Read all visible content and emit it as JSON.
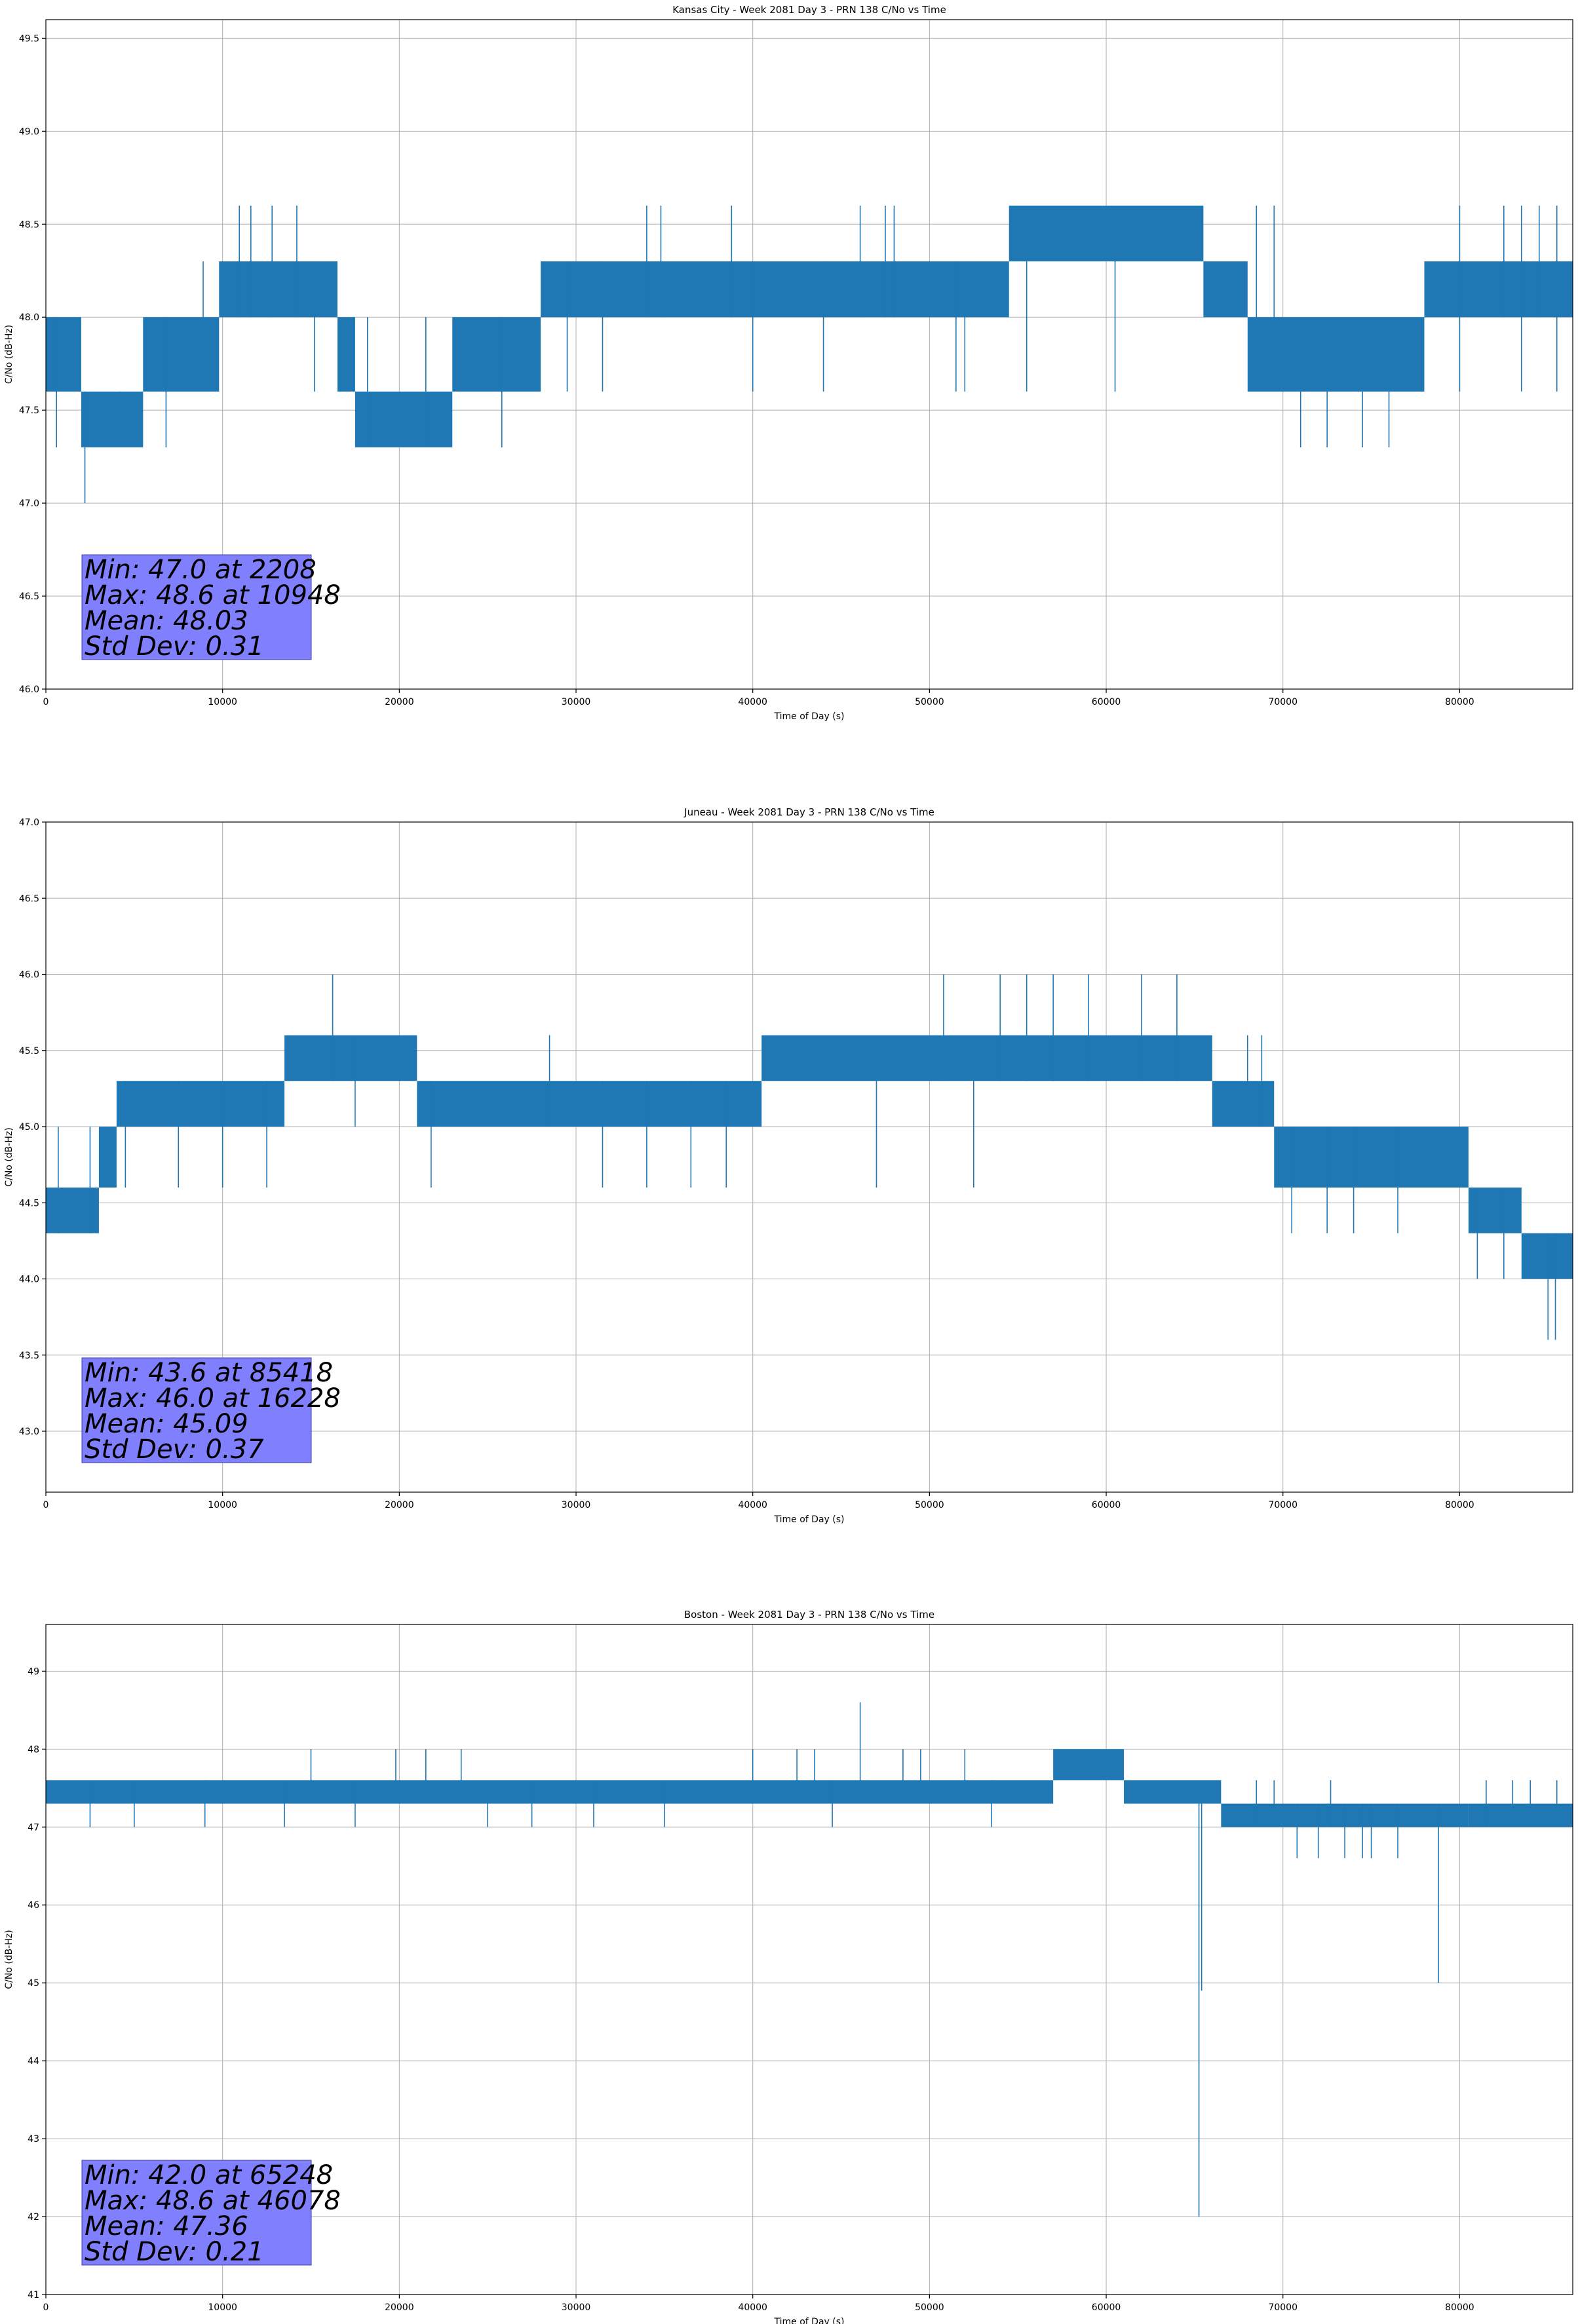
{
  "colors": {
    "series": "#1f77b4",
    "stats_box": "#8080ff",
    "grid": "#b0b0b0"
  },
  "chart_data": [
    {
      "type": "line",
      "title": "Kansas City - Week 2081 Day 3 - PRN 138 C/No vs Time",
      "xlabel": "Time of Day (s)",
      "ylabel": "C/No (dB-Hz)",
      "xlim": [
        0,
        86400
      ],
      "ylim": [
        46.0,
        49.6
      ],
      "xticks": [
        0,
        10000,
        20000,
        30000,
        40000,
        50000,
        60000,
        70000,
        80000
      ],
      "xtick_labels": [
        "0",
        "10000",
        "20000",
        "30000",
        "40000",
        "50000",
        "60000",
        "70000",
        "80000"
      ],
      "yticks": [
        46.0,
        46.5,
        47.0,
        47.5,
        48.0,
        48.5,
        49.0,
        49.5
      ],
      "ytick_labels": [
        "46.0",
        "46.5",
        "47.0",
        "47.5",
        "48.0",
        "48.5",
        "49.0",
        "49.5"
      ],
      "grid": true,
      "series": [
        {
          "envelope": [
            {
              "x0": 0,
              "x1": 2000,
              "lo": 47.6,
              "hi": 48.0
            },
            {
              "x0": 2000,
              "x1": 5500,
              "lo": 47.3,
              "hi": 47.6
            },
            {
              "x0": 5500,
              "x1": 9800,
              "lo": 47.6,
              "hi": 48.0
            },
            {
              "x0": 9800,
              "x1": 16500,
              "lo": 48.0,
              "hi": 48.3
            },
            {
              "x0": 16500,
              "x1": 17500,
              "lo": 47.6,
              "hi": 48.0
            },
            {
              "x0": 17500,
              "x1": 23000,
              "lo": 47.3,
              "hi": 47.6
            },
            {
              "x0": 23000,
              "x1": 28000,
              "lo": 47.6,
              "hi": 48.0
            },
            {
              "x0": 28000,
              "x1": 54500,
              "lo": 48.0,
              "hi": 48.3
            },
            {
              "x0": 54500,
              "x1": 65500,
              "lo": 48.3,
              "hi": 48.6
            },
            {
              "x0": 65500,
              "x1": 68000,
              "lo": 48.0,
              "hi": 48.3
            },
            {
              "x0": 68000,
              "x1": 78000,
              "lo": 47.6,
              "hi": 48.0
            },
            {
              "x0": 78000,
              "x1": 86400,
              "lo": 48.0,
              "hi": 48.3
            }
          ],
          "spikes": [
            {
              "x": 2208,
              "lo": 47.0,
              "hi": 47.6
            },
            {
              "x": 600,
              "lo": 47.3,
              "hi": 48.0
            },
            {
              "x": 4200,
              "lo": 47.3,
              "hi": 47.6
            },
            {
              "x": 6800,
              "lo": 47.3,
              "hi": 48.0
            },
            {
              "x": 8900,
              "lo": 48.0,
              "hi": 48.3
            },
            {
              "x": 10948,
              "lo": 48.0,
              "hi": 48.6
            },
            {
              "x": 11600,
              "lo": 48.0,
              "hi": 48.6
            },
            {
              "x": 12800,
              "lo": 48.0,
              "hi": 48.6
            },
            {
              "x": 14200,
              "lo": 48.0,
              "hi": 48.6
            },
            {
              "x": 15200,
              "lo": 47.6,
              "hi": 48.3
            },
            {
              "x": 18200,
              "lo": 47.3,
              "hi": 48.0
            },
            {
              "x": 21500,
              "lo": 47.3,
              "hi": 48.0
            },
            {
              "x": 25800,
              "lo": 47.3,
              "hi": 48.0
            },
            {
              "x": 29500,
              "lo": 47.6,
              "hi": 48.3
            },
            {
              "x": 31500,
              "lo": 47.6,
              "hi": 48.3
            },
            {
              "x": 34000,
              "lo": 48.0,
              "hi": 48.6
            },
            {
              "x": 34800,
              "lo": 48.0,
              "hi": 48.6
            },
            {
              "x": 38800,
              "lo": 48.0,
              "hi": 48.6
            },
            {
              "x": 46078,
              "lo": 48.0,
              "hi": 48.6
            },
            {
              "x": 40000,
              "lo": 47.6,
              "hi": 48.3
            },
            {
              "x": 44000,
              "lo": 47.6,
              "hi": 48.3
            },
            {
              "x": 47500,
              "lo": 48.0,
              "hi": 48.6
            },
            {
              "x": 48000,
              "lo": 48.0,
              "hi": 48.6
            },
            {
              "x": 51500,
              "lo": 47.6,
              "hi": 48.3
            },
            {
              "x": 52000,
              "lo": 47.6,
              "hi": 48.3
            },
            {
              "x": 55500,
              "lo": 47.6,
              "hi": 48.3
            },
            {
              "x": 60500,
              "lo": 47.6,
              "hi": 48.3
            },
            {
              "x": 68500,
              "lo": 48.0,
              "hi": 48.6
            },
            {
              "x": 69500,
              "lo": 48.0,
              "hi": 48.6
            },
            {
              "x": 71000,
              "lo": 47.3,
              "hi": 47.6
            },
            {
              "x": 72500,
              "lo": 47.3,
              "hi": 47.6
            },
            {
              "x": 74500,
              "lo": 47.3,
              "hi": 47.6
            },
            {
              "x": 76000,
              "lo": 47.3,
              "hi": 47.6
            },
            {
              "x": 80000,
              "lo": 47.6,
              "hi": 48.6
            },
            {
              "x": 82500,
              "lo": 48.0,
              "hi": 48.6
            },
            {
              "x": 83500,
              "lo": 47.6,
              "hi": 48.6
            },
            {
              "x": 84500,
              "lo": 48.0,
              "hi": 48.6
            },
            {
              "x": 85500,
              "lo": 47.6,
              "hi": 48.6
            }
          ]
        }
      ],
      "stats": [
        "Min: 47.0 at 2208",
        "Max: 48.6 at 10948",
        "Mean: 48.03",
        "Std Dev: 0.31"
      ]
    },
    {
      "type": "line",
      "title": "Juneau - Week 2081 Day 3 - PRN 138 C/No vs Time",
      "xlabel": "Time of Day (s)",
      "ylabel": "C/No (dB-Hz)",
      "xlim": [
        0,
        86400
      ],
      "ylim": [
        42.6,
        47.0
      ],
      "xticks": [
        0,
        10000,
        20000,
        30000,
        40000,
        50000,
        60000,
        70000,
        80000
      ],
      "xtick_labels": [
        "0",
        "10000",
        "20000",
        "30000",
        "40000",
        "50000",
        "60000",
        "70000",
        "80000"
      ],
      "yticks": [
        43.0,
        43.5,
        44.0,
        44.5,
        45.0,
        45.5,
        46.0,
        46.5,
        47.0
      ],
      "ytick_labels": [
        "43.0",
        "43.5",
        "44.0",
        "44.5",
        "45.0",
        "45.5",
        "46.0",
        "46.5",
        "47.0"
      ],
      "grid": true,
      "series": [
        {
          "envelope": [
            {
              "x0": 0,
              "x1": 3000,
              "lo": 44.3,
              "hi": 44.6
            },
            {
              "x0": 3000,
              "x1": 4000,
              "lo": 44.6,
              "hi": 45.0
            },
            {
              "x0": 4000,
              "x1": 13500,
              "lo": 45.0,
              "hi": 45.3
            },
            {
              "x0": 13500,
              "x1": 21000,
              "lo": 45.3,
              "hi": 45.6
            },
            {
              "x0": 21000,
              "x1": 40500,
              "lo": 45.0,
              "hi": 45.3
            },
            {
              "x0": 40500,
              "x1": 66000,
              "lo": 45.3,
              "hi": 45.6
            },
            {
              "x0": 66000,
              "x1": 69500,
              "lo": 45.0,
              "hi": 45.3
            },
            {
              "x0": 69500,
              "x1": 80500,
              "lo": 44.6,
              "hi": 45.0
            },
            {
              "x0": 80500,
              "x1": 83500,
              "lo": 44.3,
              "hi": 44.6
            },
            {
              "x0": 83500,
              "x1": 86400,
              "lo": 44.0,
              "hi": 44.3
            }
          ],
          "spikes": [
            {
              "x": 700,
              "lo": 44.3,
              "hi": 45.0
            },
            {
              "x": 2500,
              "lo": 44.3,
              "hi": 45.0
            },
            {
              "x": 4500,
              "lo": 44.6,
              "hi": 45.3
            },
            {
              "x": 7500,
              "lo": 44.6,
              "hi": 45.3
            },
            {
              "x": 10000,
              "lo": 44.6,
              "hi": 45.3
            },
            {
              "x": 12500,
              "lo": 44.6,
              "hi": 45.3
            },
            {
              "x": 16228,
              "lo": 45.3,
              "hi": 46.0
            },
            {
              "x": 17500,
              "lo": 45.0,
              "hi": 45.6
            },
            {
              "x": 21800,
              "lo": 44.6,
              "hi": 45.3
            },
            {
              "x": 28500,
              "lo": 45.0,
              "hi": 45.6
            },
            {
              "x": 31500,
              "lo": 44.6,
              "hi": 45.3
            },
            {
              "x": 34000,
              "lo": 44.6,
              "hi": 45.3
            },
            {
              "x": 36500,
              "lo": 44.6,
              "hi": 45.3
            },
            {
              "x": 38500,
              "lo": 44.6,
              "hi": 45.3
            },
            {
              "x": 50800,
              "lo": 45.3,
              "hi": 46.0
            },
            {
              "x": 54000,
              "lo": 45.3,
              "hi": 46.0
            },
            {
              "x": 55500,
              "lo": 45.3,
              "hi": 46.0
            },
            {
              "x": 57000,
              "lo": 45.3,
              "hi": 46.0
            },
            {
              "x": 59000,
              "lo": 45.3,
              "hi": 46.0
            },
            {
              "x": 62000,
              "lo": 45.3,
              "hi": 46.0
            },
            {
              "x": 64000,
              "lo": 45.3,
              "hi": 46.0
            },
            {
              "x": 47000,
              "lo": 44.6,
              "hi": 45.3
            },
            {
              "x": 52500,
              "lo": 44.6,
              "hi": 45.3
            },
            {
              "x": 68000,
              "lo": 45.0,
              "hi": 45.6
            },
            {
              "x": 68800,
              "lo": 45.0,
              "hi": 45.6
            },
            {
              "x": 70500,
              "lo": 44.3,
              "hi": 45.0
            },
            {
              "x": 72500,
              "lo": 44.3,
              "hi": 45.0
            },
            {
              "x": 74000,
              "lo": 44.3,
              "hi": 45.0
            },
            {
              "x": 76500,
              "lo": 44.3,
              "hi": 45.0
            },
            {
              "x": 81000,
              "lo": 44.0,
              "hi": 44.6
            },
            {
              "x": 82500,
              "lo": 44.0,
              "hi": 44.6
            },
            {
              "x": 85418,
              "lo": 43.6,
              "hi": 44.3
            },
            {
              "x": 85000,
              "lo": 43.6,
              "hi": 44.3
            }
          ]
        }
      ],
      "stats": [
        "Min: 43.6 at 85418",
        "Max: 46.0 at 16228",
        "Mean: 45.09",
        "Std Dev: 0.37"
      ]
    },
    {
      "type": "line",
      "title": "Boston - Week 2081 Day 3 - PRN 138 C/No vs Time",
      "xlabel": "Time of Day (s)",
      "ylabel": "C/No (dB-Hz)",
      "xlim": [
        0,
        86400
      ],
      "ylim": [
        41.0,
        49.6
      ],
      "xticks": [
        0,
        10000,
        20000,
        30000,
        40000,
        50000,
        60000,
        70000,
        80000
      ],
      "xtick_labels": [
        "0",
        "10000",
        "20000",
        "30000",
        "40000",
        "50000",
        "60000",
        "70000",
        "80000"
      ],
      "yticks": [
        41,
        42,
        43,
        44,
        45,
        46,
        47,
        48,
        49
      ],
      "ytick_labels": [
        "41",
        "42",
        "43",
        "44",
        "45",
        "46",
        "47",
        "48",
        "49"
      ],
      "grid": true,
      "series": [
        {
          "envelope": [
            {
              "x0": 0,
              "x1": 57000,
              "lo": 47.3,
              "hi": 47.6
            },
            {
              "x0": 57000,
              "x1": 61000,
              "lo": 47.6,
              "hi": 48.0
            },
            {
              "x0": 61000,
              "x1": 66500,
              "lo": 47.3,
              "hi": 47.6
            },
            {
              "x0": 66500,
              "x1": 80500,
              "lo": 47.0,
              "hi": 47.3
            },
            {
              "x0": 80500,
              "x1": 86400,
              "lo": 47.0,
              "hi": 47.3
            }
          ],
          "spikes": [
            {
              "x": 65248,
              "lo": 42.0,
              "hi": 47.3
            },
            {
              "x": 65400,
              "lo": 44.9,
              "hi": 47.3
            },
            {
              "x": 78800,
              "lo": 45.0,
              "hi": 47.3
            },
            {
              "x": 46078,
              "lo": 47.6,
              "hi": 48.6
            },
            {
              "x": 15000,
              "lo": 47.6,
              "hi": 48.0
            },
            {
              "x": 19800,
              "lo": 47.6,
              "hi": 48.0
            },
            {
              "x": 21500,
              "lo": 47.6,
              "hi": 48.0
            },
            {
              "x": 23500,
              "lo": 47.6,
              "hi": 48.0
            },
            {
              "x": 40000,
              "lo": 47.6,
              "hi": 48.0
            },
            {
              "x": 42500,
              "lo": 47.6,
              "hi": 48.0
            },
            {
              "x": 43500,
              "lo": 47.6,
              "hi": 48.0
            },
            {
              "x": 48500,
              "lo": 47.6,
              "hi": 48.0
            },
            {
              "x": 49500,
              "lo": 47.6,
              "hi": 48.0
            },
            {
              "x": 52000,
              "lo": 47.6,
              "hi": 48.0
            },
            {
              "x": 70800,
              "lo": 46.6,
              "hi": 47.3
            },
            {
              "x": 72000,
              "lo": 46.6,
              "hi": 47.3
            },
            {
              "x": 73500,
              "lo": 46.6,
              "hi": 47.3
            },
            {
              "x": 74500,
              "lo": 46.6,
              "hi": 47.3
            },
            {
              "x": 75000,
              "lo": 46.6,
              "hi": 47.3
            },
            {
              "x": 76500,
              "lo": 46.6,
              "hi": 47.3
            },
            {
              "x": 2500,
              "lo": 47.0,
              "hi": 47.6
            },
            {
              "x": 5000,
              "lo": 47.0,
              "hi": 47.6
            },
            {
              "x": 9000,
              "lo": 47.0,
              "hi": 47.6
            },
            {
              "x": 13500,
              "lo": 47.0,
              "hi": 47.6
            },
            {
              "x": 17500,
              "lo": 47.0,
              "hi": 47.6
            },
            {
              "x": 25000,
              "lo": 47.0,
              "hi": 47.6
            },
            {
              "x": 27500,
              "lo": 47.0,
              "hi": 47.6
            },
            {
              "x": 31000,
              "lo": 47.0,
              "hi": 47.6
            },
            {
              "x": 35000,
              "lo": 47.0,
              "hi": 47.6
            },
            {
              "x": 44500,
              "lo": 47.0,
              "hi": 47.6
            },
            {
              "x": 53500,
              "lo": 47.0,
              "hi": 47.6
            },
            {
              "x": 68500,
              "lo": 47.0,
              "hi": 47.6
            },
            {
              "x": 69500,
              "lo": 47.0,
              "hi": 47.6
            },
            {
              "x": 72700,
              "lo": 47.0,
              "hi": 47.6
            },
            {
              "x": 81500,
              "lo": 47.0,
              "hi": 47.6
            },
            {
              "x": 83000,
              "lo": 47.0,
              "hi": 47.6
            },
            {
              "x": 84000,
              "lo": 47.0,
              "hi": 47.6
            },
            {
              "x": 85500,
              "lo": 47.0,
              "hi": 47.6
            }
          ]
        }
      ],
      "stats": [
        "Min: 42.0 at 65248",
        "Max: 48.6 at 46078",
        "Mean: 47.36",
        "Std Dev: 0.21"
      ]
    }
  ]
}
